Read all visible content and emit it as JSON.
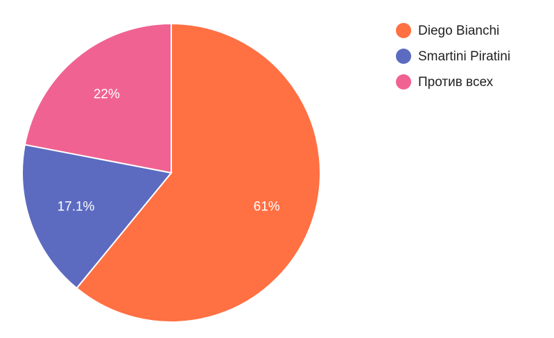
{
  "chart_data": {
    "type": "pie",
    "title": "",
    "legend_position": "top-right",
    "slices": [
      {
        "name": "Diego Bianchi",
        "value": 61,
        "label": "61%",
        "color": "#ff7043"
      },
      {
        "name": "Smartini Piratini",
        "value": 17.1,
        "label": "17.1%",
        "color": "#5c6bc0"
      },
      {
        "name": "Против всех",
        "value": 22,
        "label": "22%",
        "color": "#f06292"
      }
    ]
  }
}
